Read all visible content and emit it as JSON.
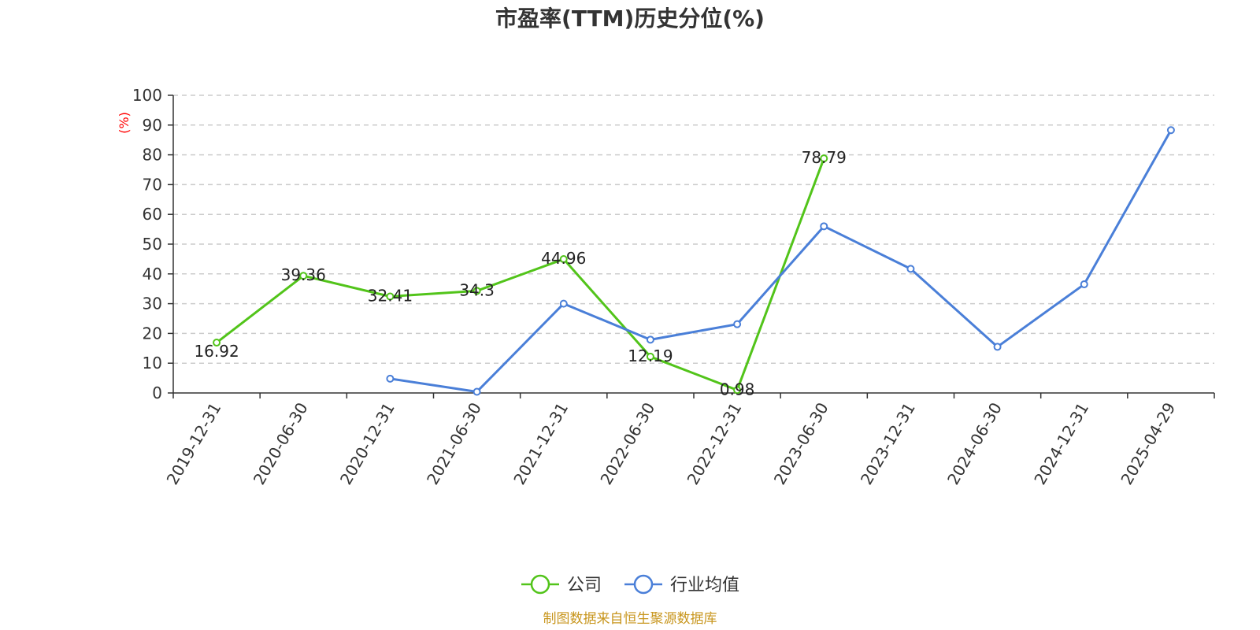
{
  "chart_data": {
    "type": "line",
    "title": "市盈率(TTM)历史分位(%)",
    "ylabel": "(%)",
    "ylim": [
      0,
      100
    ],
    "yticks": [
      0,
      10,
      20,
      30,
      40,
      50,
      60,
      70,
      80,
      90,
      100
    ],
    "grid": true,
    "legend_position": "bottom-center",
    "categories": [
      "2019-12-31",
      "2020-06-30",
      "2020-12-31",
      "2021-06-30",
      "2021-12-31",
      "2022-06-30",
      "2022-12-31",
      "2023-06-30",
      "2023-12-31",
      "2024-06-30",
      "2024-12-31",
      "2025-04-29"
    ],
    "series": [
      {
        "name": "公司",
        "color": "#52c41a",
        "show_labels": true,
        "values": [
          16.92,
          39.36,
          32.41,
          34.3,
          44.96,
          12.19,
          0.98,
          78.79,
          null,
          null,
          null,
          null
        ]
      },
      {
        "name": "行业均值",
        "color": "#4a7fd8",
        "show_labels": false,
        "values": [
          null,
          null,
          4.8,
          0.4,
          30.0,
          17.9,
          23.1,
          56.0,
          41.7,
          15.5,
          36.5,
          88.3
        ]
      }
    ]
  },
  "source": "制图数据来自恒生聚源数据库",
  "colors": {
    "ylabel": "#ff0000",
    "source": "#c8961e",
    "grid": "#cccccc",
    "axis": "#333333"
  }
}
